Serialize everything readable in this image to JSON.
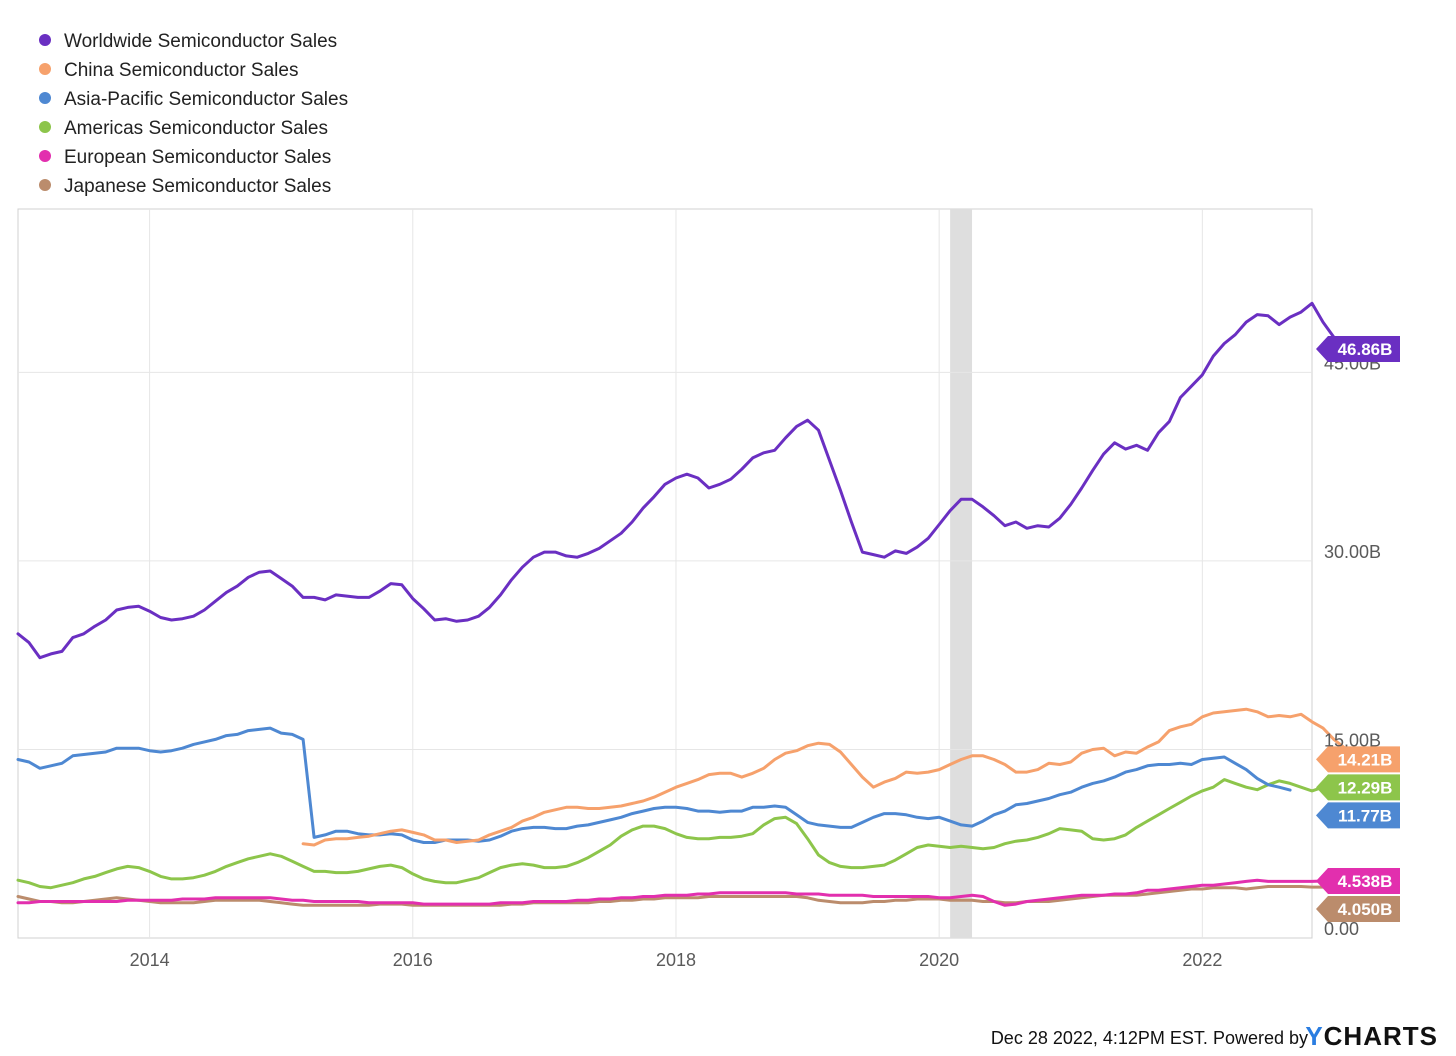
{
  "chart_data": {
    "type": "line",
    "x_unit": "month",
    "xlim": [
      "2013-01",
      "2022-11"
    ],
    "ylim": [
      0,
      58
    ],
    "y_ticks": [
      {
        "value": 0,
        "label": "0.00"
      },
      {
        "value": 15,
        "label": "15.00B"
      },
      {
        "value": 30,
        "label": "30.00B"
      },
      {
        "value": 45,
        "label": "45.00B"
      }
    ],
    "x_ticks": [
      {
        "date": "2014-01",
        "label": "2014"
      },
      {
        "date": "2016-01",
        "label": "2016"
      },
      {
        "date": "2018-01",
        "label": "2018"
      },
      {
        "date": "2020-01",
        "label": "2020"
      },
      {
        "date": "2022-01",
        "label": "2022"
      }
    ],
    "recession_band": {
      "start": "2020-02",
      "end": "2020-04"
    },
    "grid": true,
    "legend_position": "top-left",
    "series": [
      {
        "name": "Worldwide Semiconductor Sales",
        "color": "#6a2fc2",
        "last_label": "46.86B",
        "start": "2013-01",
        "values": [
          24.2,
          23.5,
          22.3,
          22.6,
          22.8,
          23.9,
          24.2,
          24.8,
          25.3,
          26.1,
          26.3,
          26.4,
          26.0,
          25.5,
          25.3,
          25.4,
          25.6,
          26.1,
          26.8,
          27.5,
          28.0,
          28.7,
          29.1,
          29.2,
          28.6,
          28.0,
          27.1,
          27.1,
          26.9,
          27.3,
          27.2,
          27.1,
          27.1,
          27.6,
          28.2,
          28.1,
          27.0,
          26.2,
          25.3,
          25.4,
          25.2,
          25.3,
          25.6,
          26.3,
          27.3,
          28.5,
          29.5,
          30.3,
          30.7,
          30.7,
          30.4,
          30.3,
          30.6,
          31.0,
          31.6,
          32.2,
          33.1,
          34.2,
          35.1,
          36.1,
          36.6,
          36.9,
          36.6,
          35.8,
          36.1,
          36.5,
          37.3,
          38.2,
          38.6,
          38.8,
          39.8,
          40.7,
          41.2,
          40.4,
          38.0,
          35.6,
          33.1,
          30.7,
          30.5,
          30.3,
          30.8,
          30.6,
          31.1,
          31.8,
          32.9,
          34.0,
          34.9,
          34.9,
          34.3,
          33.6,
          32.8,
          33.1,
          32.6,
          32.8,
          32.7,
          33.4,
          34.5,
          35.8,
          37.2,
          38.5,
          39.4,
          38.9,
          39.2,
          38.8,
          40.2,
          41.1,
          43.0,
          43.9,
          44.8,
          46.3,
          47.3,
          48.0,
          49.0,
          49.6,
          49.5,
          48.8,
          49.4,
          49.8,
          50.5,
          49.0,
          47.8,
          46.9,
          46.86
        ]
      },
      {
        "name": "China Semiconductor Sales",
        "color": "#f6a16c",
        "last_label": "14.21B",
        "start": "2015-03",
        "values": [
          7.5,
          7.4,
          7.8,
          7.9,
          7.9,
          8.0,
          8.1,
          8.3,
          8.5,
          8.6,
          8.4,
          8.2,
          7.8,
          7.8,
          7.6,
          7.7,
          7.8,
          8.2,
          8.5,
          8.8,
          9.3,
          9.6,
          10.0,
          10.2,
          10.4,
          10.4,
          10.3,
          10.3,
          10.4,
          10.5,
          10.7,
          10.9,
          11.2,
          11.6,
          12.0,
          12.3,
          12.6,
          13.0,
          13.1,
          13.1,
          12.8,
          13.1,
          13.5,
          14.2,
          14.7,
          14.9,
          15.3,
          15.5,
          15.4,
          14.8,
          13.8,
          12.8,
          12.0,
          12.4,
          12.7,
          13.2,
          13.1,
          13.2,
          13.4,
          13.8,
          14.2,
          14.5,
          14.5,
          14.2,
          13.8,
          13.2,
          13.2,
          13.4,
          13.9,
          13.8,
          14.0,
          14.7,
          15.0,
          15.1,
          14.5,
          14.8,
          14.7,
          15.2,
          15.6,
          16.5,
          16.8,
          17.0,
          17.6,
          17.9,
          18.0,
          18.1,
          18.2,
          18.0,
          17.6,
          17.7,
          17.6,
          17.8,
          17.2,
          16.7,
          15.8,
          15.1,
          14.6,
          14.21
        ]
      },
      {
        "name": "Asia-Pacific Semiconductor Sales",
        "color": "#4e88d2",
        "last_label": "11.77B",
        "start": "2013-01",
        "values": [
          14.2,
          14.0,
          13.5,
          13.7,
          13.9,
          14.5,
          14.6,
          14.7,
          14.8,
          15.1,
          15.1,
          15.1,
          14.9,
          14.8,
          14.9,
          15.1,
          15.4,
          15.6,
          15.8,
          16.1,
          16.2,
          16.5,
          16.6,
          16.7,
          16.3,
          16.2,
          15.8,
          8.0,
          8.2,
          8.5,
          8.5,
          8.3,
          8.2,
          8.2,
          8.3,
          8.2,
          7.8,
          7.6,
          7.6,
          7.8,
          7.8,
          7.8,
          7.7,
          7.8,
          8.1,
          8.5,
          8.7,
          8.8,
          8.8,
          8.7,
          8.7,
          8.9,
          9.0,
          9.2,
          9.4,
          9.6,
          9.9,
          10.1,
          10.3,
          10.4,
          10.4,
          10.3,
          10.1,
          10.1,
          10.0,
          10.1,
          10.1,
          10.4,
          10.4,
          10.5,
          10.4,
          9.8,
          9.2,
          9.0,
          8.9,
          8.8,
          8.8,
          9.2,
          9.6,
          9.9,
          9.9,
          9.8,
          9.6,
          9.5,
          9.6,
          9.3,
          9.0,
          8.9,
          9.3,
          9.8,
          10.1,
          10.6,
          10.7,
          10.9,
          11.1,
          11.4,
          11.6,
          12.0,
          12.3,
          12.5,
          12.8,
          13.2,
          13.4,
          13.7,
          13.8,
          13.8,
          13.9,
          13.8,
          14.2,
          14.3,
          14.4,
          13.9,
          13.4,
          12.7,
          12.2,
          12.0,
          11.77
        ]
      },
      {
        "name": "Americas Semiconductor Sales",
        "color": "#8dc54b",
        "last_label": "12.29B",
        "start": "2013-01",
        "values": [
          4.6,
          4.4,
          4.1,
          4.0,
          4.2,
          4.4,
          4.7,
          4.9,
          5.2,
          5.5,
          5.7,
          5.6,
          5.3,
          4.9,
          4.7,
          4.7,
          4.8,
          5.0,
          5.3,
          5.7,
          6.0,
          6.3,
          6.5,
          6.7,
          6.5,
          6.1,
          5.7,
          5.3,
          5.3,
          5.2,
          5.2,
          5.3,
          5.5,
          5.7,
          5.8,
          5.6,
          5.1,
          4.7,
          4.5,
          4.4,
          4.4,
          4.6,
          4.8,
          5.2,
          5.6,
          5.8,
          5.9,
          5.8,
          5.6,
          5.6,
          5.7,
          6.0,
          6.4,
          6.9,
          7.4,
          8.1,
          8.6,
          8.9,
          8.9,
          8.7,
          8.3,
          8.0,
          7.9,
          7.9,
          8.0,
          8.0,
          8.1,
          8.3,
          9.0,
          9.5,
          9.6,
          9.1,
          7.9,
          6.6,
          6.0,
          5.7,
          5.6,
          5.6,
          5.7,
          5.8,
          6.2,
          6.7,
          7.2,
          7.4,
          7.3,
          7.2,
          7.3,
          7.2,
          7.1,
          7.2,
          7.5,
          7.7,
          7.8,
          8.0,
          8.3,
          8.7,
          8.6,
          8.5,
          7.9,
          7.8,
          7.9,
          8.2,
          8.8,
          9.3,
          9.8,
          10.3,
          10.8,
          11.3,
          11.7,
          12.0,
          12.6,
          12.3,
          12.0,
          11.8,
          12.2,
          12.5,
          12.3,
          12.0,
          11.7,
          12.0,
          12.29
        ]
      },
      {
        "name": "European Semiconductor Sales",
        "color": "#e22fae",
        "last_label": "4.538B",
        "start": "2013-01",
        "values": [
          2.8,
          2.8,
          2.9,
          2.9,
          2.9,
          2.9,
          2.9,
          2.9,
          2.9,
          2.9,
          3.0,
          3.0,
          3.0,
          3.0,
          3.0,
          3.1,
          3.1,
          3.1,
          3.2,
          3.2,
          3.2,
          3.2,
          3.2,
          3.2,
          3.1,
          3.0,
          3.0,
          2.9,
          2.9,
          2.9,
          2.9,
          2.9,
          2.8,
          2.8,
          2.8,
          2.8,
          2.8,
          2.7,
          2.7,
          2.7,
          2.7,
          2.7,
          2.7,
          2.7,
          2.8,
          2.8,
          2.8,
          2.9,
          2.9,
          2.9,
          2.9,
          3.0,
          3.0,
          3.1,
          3.1,
          3.2,
          3.2,
          3.3,
          3.3,
          3.4,
          3.4,
          3.4,
          3.5,
          3.5,
          3.6,
          3.6,
          3.6,
          3.6,
          3.6,
          3.6,
          3.6,
          3.5,
          3.5,
          3.5,
          3.4,
          3.4,
          3.4,
          3.4,
          3.3,
          3.3,
          3.3,
          3.3,
          3.3,
          3.3,
          3.2,
          3.2,
          3.3,
          3.4,
          3.3,
          2.9,
          2.6,
          2.7,
          2.9,
          3.0,
          3.1,
          3.2,
          3.3,
          3.4,
          3.4,
          3.4,
          3.5,
          3.5,
          3.6,
          3.8,
          3.8,
          3.9,
          4.0,
          4.1,
          4.2,
          4.2,
          4.3,
          4.4,
          4.5,
          4.6,
          4.5,
          4.5,
          4.5,
          4.5,
          4.5,
          4.538
        ]
      },
      {
        "name": "Japanese Semiconductor Sales",
        "color": "#bb8c6c",
        "last_label": "4.050B",
        "start": "2013-01",
        "values": [
          3.3,
          3.1,
          2.9,
          2.9,
          2.8,
          2.8,
          2.9,
          3.0,
          3.1,
          3.2,
          3.1,
          3.0,
          2.9,
          2.8,
          2.8,
          2.8,
          2.8,
          2.9,
          3.0,
          3.0,
          3.0,
          3.0,
          3.0,
          2.9,
          2.8,
          2.7,
          2.6,
          2.6,
          2.6,
          2.6,
          2.6,
          2.6,
          2.6,
          2.7,
          2.7,
          2.7,
          2.6,
          2.6,
          2.6,
          2.6,
          2.6,
          2.6,
          2.6,
          2.6,
          2.6,
          2.7,
          2.7,
          2.8,
          2.8,
          2.8,
          2.8,
          2.8,
          2.8,
          2.9,
          2.9,
          3.0,
          3.0,
          3.1,
          3.1,
          3.2,
          3.2,
          3.2,
          3.2,
          3.3,
          3.3,
          3.3,
          3.3,
          3.3,
          3.3,
          3.3,
          3.3,
          3.3,
          3.2,
          3.0,
          2.9,
          2.8,
          2.8,
          2.8,
          2.9,
          2.9,
          3.0,
          3.0,
          3.1,
          3.1,
          3.1,
          3.0,
          3.0,
          3.0,
          2.9,
          2.9,
          2.8,
          2.8,
          2.9,
          2.9,
          2.9,
          3.0,
          3.1,
          3.2,
          3.3,
          3.4,
          3.4,
          3.4,
          3.4,
          3.5,
          3.6,
          3.7,
          3.8,
          3.9,
          3.9,
          4.0,
          4.0,
          4.0,
          3.9,
          4.0,
          4.1,
          4.1,
          4.1,
          4.1,
          4.05,
          4.05,
          4.05,
          4.05,
          4.05,
          4.05,
          4.05
        ]
      }
    ]
  },
  "footer": {
    "timestamp": "Dec 28 2022, 4:12PM EST.",
    "powered_by": "Powered by",
    "brand": "YCHARTS",
    "brand_accent": "#2a7de1"
  }
}
